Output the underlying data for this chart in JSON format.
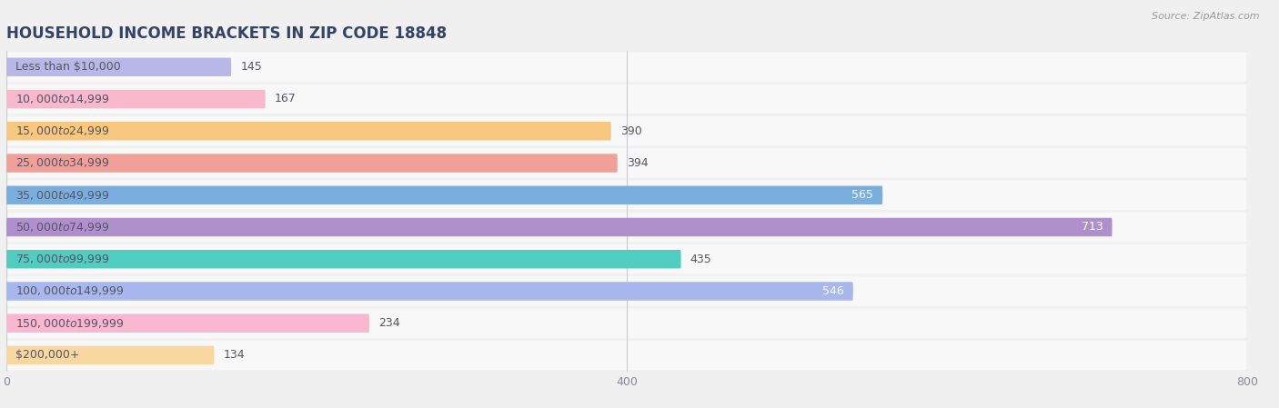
{
  "title": "HOUSEHOLD INCOME BRACKETS IN ZIP CODE 18848",
  "source": "Source: ZipAtlas.com",
  "categories": [
    "Less than $10,000",
    "$10,000 to $14,999",
    "$15,000 to $24,999",
    "$25,000 to $34,999",
    "$35,000 to $49,999",
    "$50,000 to $74,999",
    "$75,000 to $99,999",
    "$100,000 to $149,999",
    "$150,000 to $199,999",
    "$200,000+"
  ],
  "values": [
    145,
    167,
    390,
    394,
    565,
    713,
    435,
    546,
    234,
    134
  ],
  "bar_colors": [
    "#b8b8e8",
    "#f9b8cc",
    "#f9c880",
    "#f0a098",
    "#7aaedf",
    "#b090cc",
    "#50ccc0",
    "#a8b8ec",
    "#f9b8d0",
    "#f9d8a0"
  ],
  "value_inside": [
    false,
    false,
    false,
    false,
    true,
    true,
    false,
    true,
    false,
    false
  ],
  "xlim": [
    0,
    800
  ],
  "xticks": [
    0,
    400,
    800
  ],
  "background_color": "#f0f0f0",
  "row_bg_color": "#e8e8ee",
  "bar_bg_light": "#f8f8f8",
  "title_fontsize": 12,
  "label_fontsize": 9,
  "value_fontsize": 9,
  "title_color": "#334466",
  "label_color": "#555566",
  "value_color_outside": "#555566",
  "value_color_inside": "#ffffff"
}
